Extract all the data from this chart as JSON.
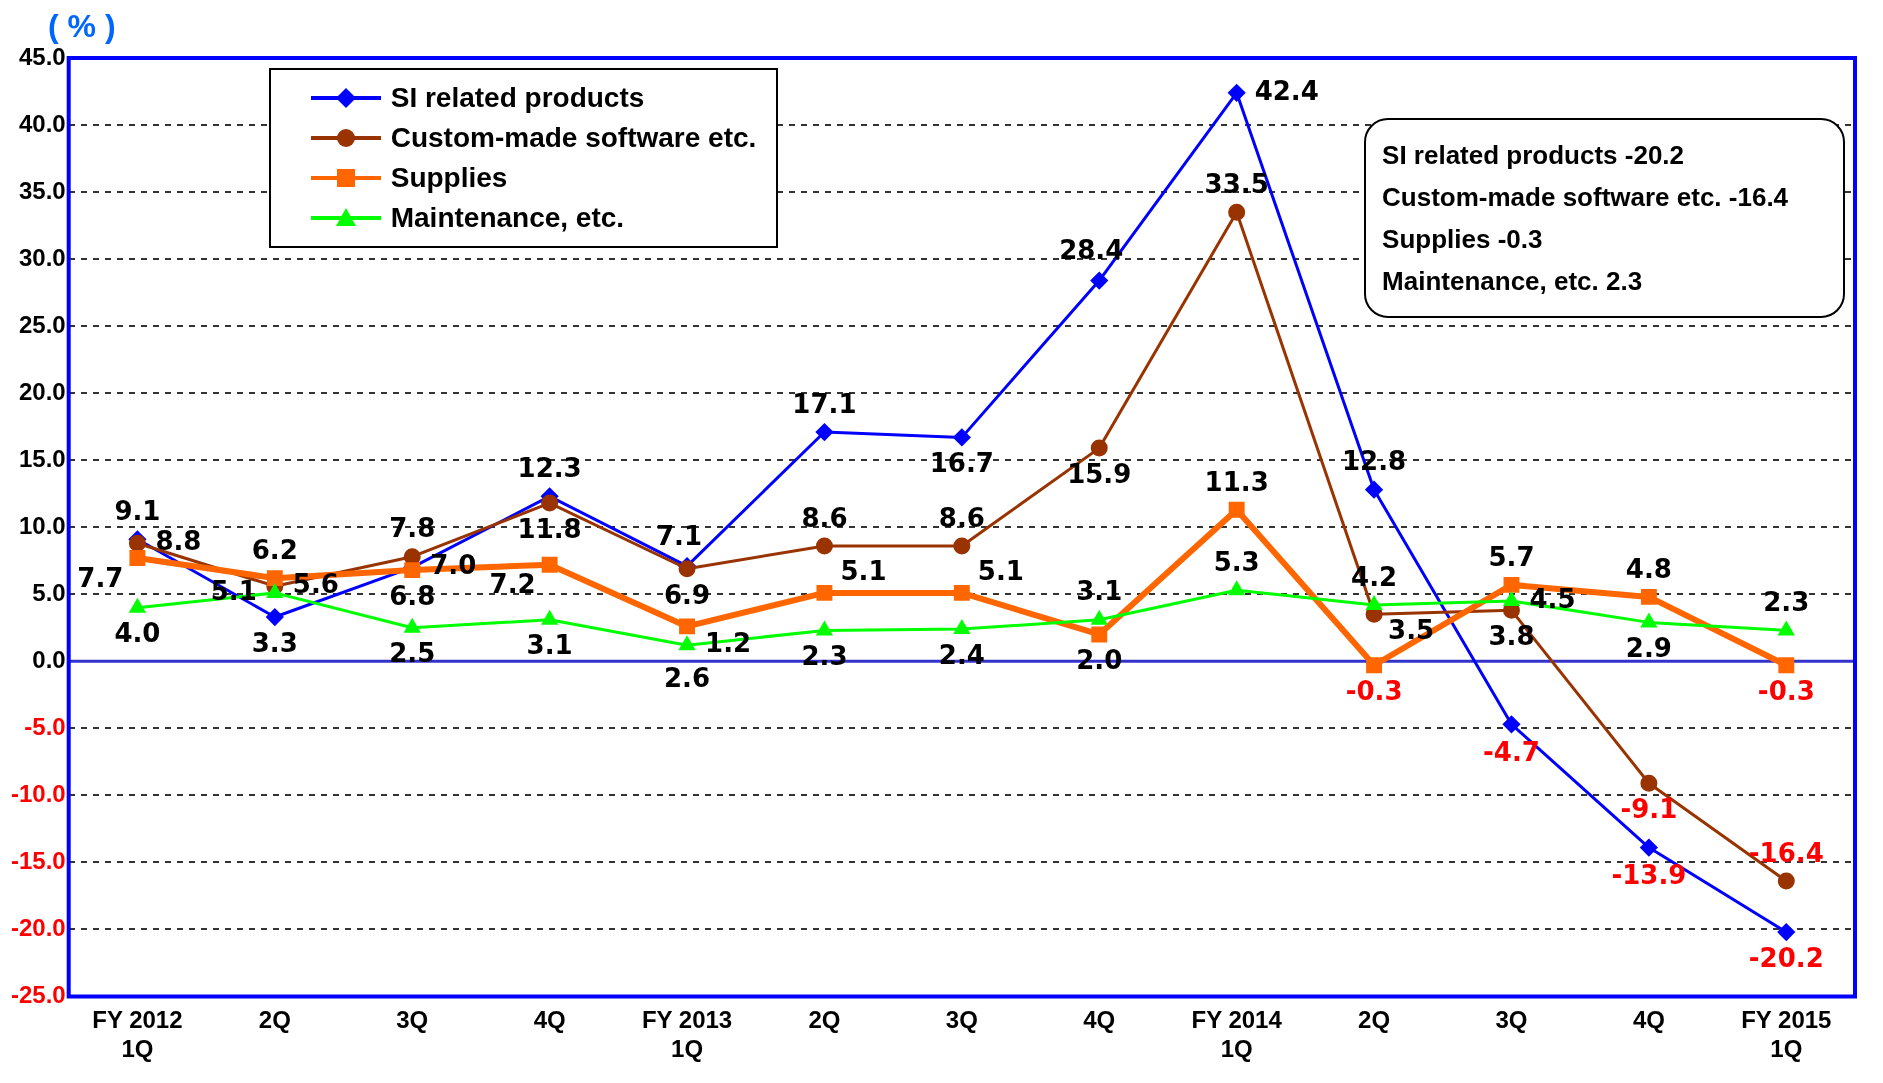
{
  "chart_data": {
    "type": "line",
    "ylabel": "( % )",
    "categories": [
      "FY 2012\n1Q",
      "2Q",
      "3Q",
      "4Q",
      "FY 2013\n1Q",
      "2Q",
      "3Q",
      "4Q",
      "FY 2014\n1Q",
      "2Q",
      "3Q",
      "4Q",
      "FY 2015\n1Q"
    ],
    "series": [
      {
        "name": "SI related products",
        "color": "#0000ff",
        "marker": "diamond",
        "values": [
          9.1,
          3.3,
          7.0,
          12.3,
          7.1,
          17.1,
          16.7,
          28.4,
          42.4,
          12.8,
          -4.7,
          -13.9,
          -20.2
        ],
        "value_labels": [
          "9.1",
          "3.3",
          "7.0",
          "12.3",
          "7.1",
          "17.1",
          "16.7",
          "28.4",
          "42.4",
          "12.8",
          "-4.7",
          "-13.9",
          "-20.2"
        ]
      },
      {
        "name": "Custom-made software etc.",
        "color": "#993300",
        "marker": "circle",
        "values": [
          8.8,
          5.6,
          7.8,
          11.8,
          6.9,
          8.6,
          8.6,
          15.9,
          33.5,
          3.5,
          3.8,
          -9.1,
          -16.4
        ],
        "value_labels": [
          "8.8",
          "5.6",
          "7.8",
          "11.8",
          "6.9",
          "8.6",
          "8.6",
          "15.9",
          "33.5",
          "3.5",
          "3.8",
          "-9.1",
          "-16.4"
        ]
      },
      {
        "name": "Supplies",
        "color": "#ff6600",
        "marker": "square",
        "values": [
          7.7,
          6.2,
          6.8,
          7.2,
          2.6,
          5.1,
          5.1,
          2.0,
          11.3,
          -0.3,
          5.7,
          4.8,
          -0.3
        ],
        "value_labels": [
          "7.7",
          "6.2",
          "6.8",
          "7.2",
          "2.6",
          "5.1",
          "5.1",
          "2.0",
          "11.3",
          "-0.3",
          "5.7",
          "4.8",
          "-0.3"
        ]
      },
      {
        "name": "Maintenance, etc.",
        "color": "#00ff00",
        "marker": "triangle",
        "values": [
          4.0,
          5.1,
          2.5,
          3.1,
          1.2,
          2.3,
          2.4,
          3.1,
          5.3,
          4.2,
          4.5,
          2.9,
          2.3
        ],
        "value_labels": [
          "4.0",
          "5.1",
          "2.5",
          "3.1",
          "1.2",
          "2.3",
          "2.4",
          "3.1",
          "5.3",
          "4.2",
          "4.5",
          "2.9",
          "2.3"
        ]
      }
    ],
    "ylim": [
      -25,
      45
    ],
    "yticks": [
      {
        "value": -25,
        "label": "-25.0"
      },
      {
        "value": -20,
        "label": "-20.0"
      },
      {
        "value": -15,
        "label": "-15.0"
      },
      {
        "value": -10,
        "label": "-10.0"
      },
      {
        "value": -5,
        "label": "-5.0"
      },
      {
        "value": 0,
        "label": "0.0"
      },
      {
        "value": 5,
        "label": "5.0"
      },
      {
        "value": 10,
        "label": "10.0"
      },
      {
        "value": 15,
        "label": "15.0"
      },
      {
        "value": 20,
        "label": "20.0"
      },
      {
        "value": 25,
        "label": "25.0"
      },
      {
        "value": 30,
        "label": "30.0"
      },
      {
        "value": 35,
        "label": "35.0"
      },
      {
        "value": 40,
        "label": "40.0"
      },
      {
        "value": 45,
        "label": "45.0"
      }
    ],
    "ref_lines": [
      {
        "axis": "y",
        "value": 0,
        "color": "#3333cc"
      }
    ],
    "grid": "y",
    "line_style": "solid",
    "legend": "top left",
    "annotations": [
      "SI related products -20.2",
      "Custom-made software etc. -16.4",
      "Supplies -0.3",
      "Maintenance, etc. 2.3"
    ]
  }
}
